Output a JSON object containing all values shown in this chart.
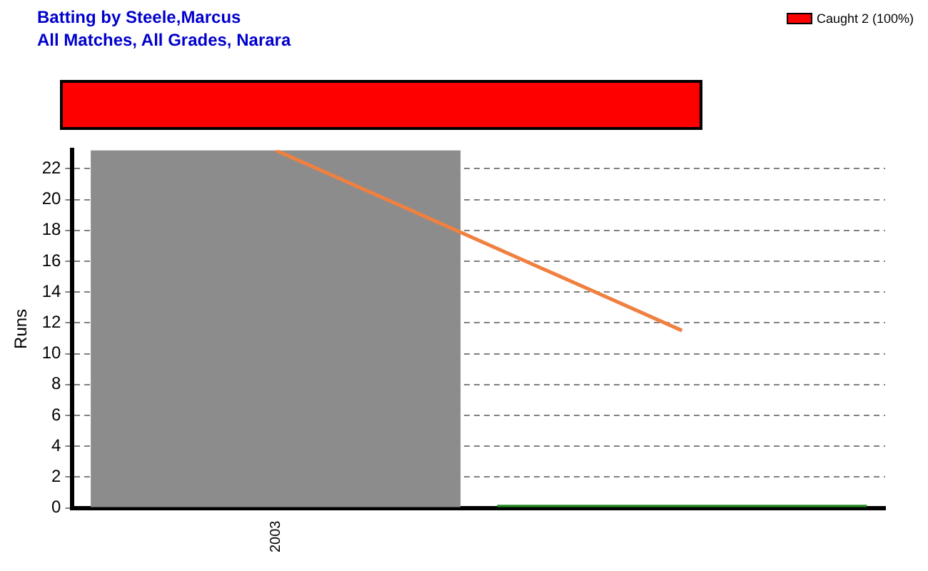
{
  "chart_data": {
    "type": "bar",
    "title": "Batting by Steele,Marcus",
    "subtitle": "All Matches, All Grades, Narara",
    "ylabel": "Runs",
    "categories": [
      "2003",
      null
    ],
    "ylim": [
      0,
      23.2
    ],
    "yticks": [
      0,
      2,
      4,
      6,
      8,
      10,
      12,
      14,
      16,
      18,
      20,
      22
    ],
    "grid": "y",
    "legend": false,
    "annotations": [
      "Caught 2 (100%)"
    ],
    "series": [
      {
        "colors": [
          "#8c8c8c",
          "#228b22"
        ],
        "values": [
          23.2,
          0.2
        ]
      },
      {
        "type": "line",
        "color": "#f08040",
        "marker": "none",
        "values": [
          23.2,
          11.5
        ]
      }
    ]
  }
}
